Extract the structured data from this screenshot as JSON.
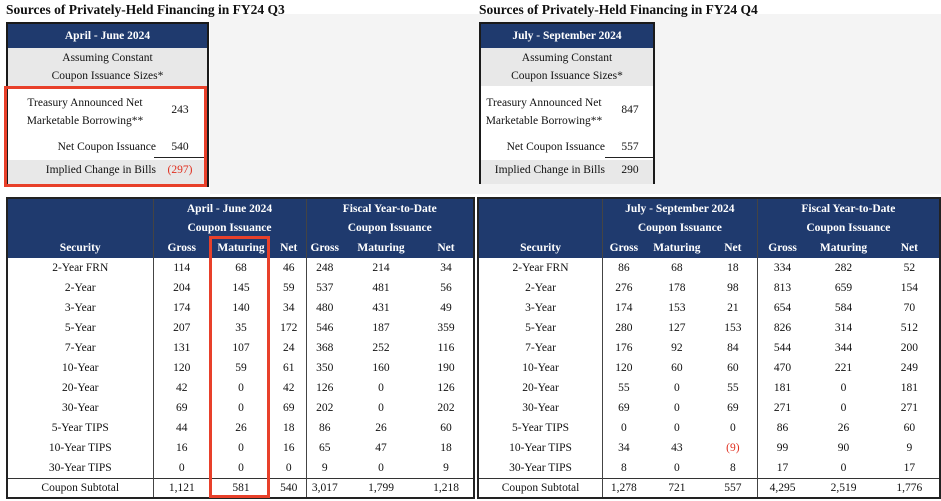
{
  "q3": {
    "title": "Sources of Privately-Held Financing in FY24 Q3",
    "period": "April - June 2024",
    "assump_line1": "Assuming Constant",
    "assump_line2": "Coupon Issuance Sizes*",
    "tamb_line1": "Treasury Announced Net",
    "tamb_line2": "Marketable Borrowing**",
    "tamb_value": "243",
    "net_coupon_label": "Net Coupon Issuance",
    "net_coupon_value": "540",
    "bills_label": "Implied Change in Bills",
    "bills_value": "(297)"
  },
  "q4": {
    "title": "Sources of Privately-Held Financing in FY24 Q4",
    "period": "July - September 2024",
    "assump_line1": "Assuming Constant",
    "assump_line2": "Coupon Issuance Sizes*",
    "tamb_line1": "Treasury Announced Net",
    "tamb_line2": "Marketable Borrowing**",
    "tamb_value": "847",
    "net_coupon_label": "Net Coupon Issuance",
    "net_coupon_value": "557",
    "bills_label": "Implied Change in Bills",
    "bills_value": "290"
  },
  "table_left": {
    "period": "April - June 2024",
    "fytd": "Fiscal Year-to-Date",
    "coupon": "Coupon Issuance",
    "cols": [
      "Security",
      "Gross",
      "Maturing",
      "Net",
      "Gross",
      "Maturing",
      "Net"
    ],
    "rows": [
      [
        "2-Year FRN",
        "114",
        "68",
        "46",
        "248",
        "214",
        "34"
      ],
      [
        "2-Year",
        "204",
        "145",
        "59",
        "537",
        "481",
        "56"
      ],
      [
        "3-Year",
        "174",
        "140",
        "34",
        "480",
        "431",
        "49"
      ],
      [
        "5-Year",
        "207",
        "35",
        "172",
        "546",
        "187",
        "359"
      ],
      [
        "7-Year",
        "131",
        "107",
        "24",
        "368",
        "252",
        "116"
      ],
      [
        "10-Year",
        "120",
        "59",
        "61",
        "350",
        "160",
        "190"
      ],
      [
        "20-Year",
        "42",
        "0",
        "42",
        "126",
        "0",
        "126"
      ],
      [
        "30-Year",
        "69",
        "0",
        "69",
        "202",
        "0",
        "202"
      ],
      [
        "5-Year TIPS",
        "44",
        "26",
        "18",
        "86",
        "26",
        "60"
      ],
      [
        "10-Year TIPS",
        "16",
        "0",
        "16",
        "65",
        "47",
        "18"
      ],
      [
        "30-Year TIPS",
        "0",
        "0",
        "0",
        "9",
        "0",
        "9"
      ]
    ],
    "subtotal": [
      "Coupon Subtotal",
      "1,121",
      "581",
      "540",
      "3,017",
      "1,799",
      "1,218"
    ]
  },
  "table_right": {
    "period": "July - September 2024",
    "fytd": "Fiscal Year-to-Date",
    "coupon": "Coupon Issuance",
    "cols": [
      "Security",
      "Gross",
      "Maturing",
      "Net",
      "Gross",
      "Maturing",
      "Net"
    ],
    "rows": [
      [
        "2-Year FRN",
        "86",
        "68",
        "18",
        "334",
        "282",
        "52"
      ],
      [
        "2-Year",
        "276",
        "178",
        "98",
        "813",
        "659",
        "154"
      ],
      [
        "3-Year",
        "174",
        "153",
        "21",
        "654",
        "584",
        "70"
      ],
      [
        "5-Year",
        "280",
        "127",
        "153",
        "826",
        "314",
        "512"
      ],
      [
        "7-Year",
        "176",
        "92",
        "84",
        "544",
        "344",
        "200"
      ],
      [
        "10-Year",
        "120",
        "60",
        "60",
        "470",
        "221",
        "249"
      ],
      [
        "20-Year",
        "55",
        "0",
        "55",
        "181",
        "0",
        "181"
      ],
      [
        "30-Year",
        "69",
        "0",
        "69",
        "271",
        "0",
        "271"
      ],
      [
        "5-Year TIPS",
        "0",
        "0",
        "0",
        "86",
        "26",
        "60"
      ],
      [
        "10-Year TIPS",
        "34",
        "43",
        "(9)",
        "99",
        "90",
        "9"
      ],
      [
        "30-Year TIPS",
        "8",
        "0",
        "8",
        "17",
        "0",
        "17"
      ]
    ],
    "subtotal": [
      "Coupon Subtotal",
      "1,278",
      "721",
      "557",
      "4,295",
      "2,519",
      "1,776"
    ]
  },
  "colors": {
    "header_navy": "#1f3a6e",
    "highlight_red": "#e8402a",
    "negative_red": "#e03020",
    "shade_gray": "#e8e8e8"
  }
}
